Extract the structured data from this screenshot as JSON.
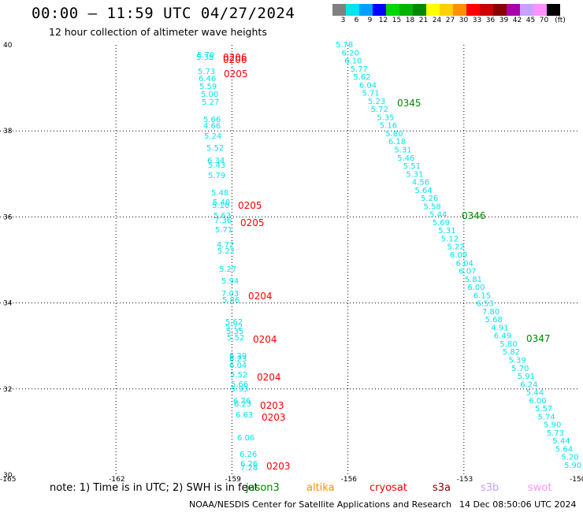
{
  "header": {
    "title": "00:00 – 11:59 UTC 04/27/2024",
    "subtitle": "12 hour collection of altimeter wave heights"
  },
  "legend": {
    "unit": "(ft)",
    "bins": [
      {
        "label": "3",
        "color": "#808080"
      },
      {
        "label": "6",
        "color": "#00e5ee"
      },
      {
        "label": "9",
        "color": "#00a0ff"
      },
      {
        "label": "12",
        "color": "#0000ff"
      },
      {
        "label": "15",
        "color": "#00d800"
      },
      {
        "label": "18",
        "color": "#00b400"
      },
      {
        "label": "21",
        "color": "#008800"
      },
      {
        "label": "24",
        "color": "#ffff00"
      },
      {
        "label": "27",
        "color": "#ffd000"
      },
      {
        "label": "30",
        "color": "#ff9000"
      },
      {
        "label": "33",
        "color": "#ff0000"
      },
      {
        "label": "36",
        "color": "#cc0000"
      },
      {
        "label": "39",
        "color": "#880000"
      },
      {
        "label": "42",
        "color": "#aa00aa"
      },
      {
        "label": "45",
        "color": "#c8a0ff"
      },
      {
        "label": "70",
        "color": "#ff90ff"
      },
      {
        "label": "",
        "color": "#000000"
      }
    ]
  },
  "map": {
    "lat_ticks": [
      "40",
      "38",
      "36",
      "34",
      "32",
      "30"
    ],
    "lon_ticks": [
      "-165",
      "-162",
      "-159",
      "-156",
      "-153",
      "-150"
    ],
    "lon_range": [
      -165,
      -150
    ],
    "lat_range": [
      30,
      40
    ],
    "track_color": "#00e5ee",
    "time_colors": {
      "jason3": "#008800",
      "cryosat": "#ff0000"
    },
    "west_track_values": [
      "5.70",
      "5.38",
      "5.73",
      "6.46",
      "5.59",
      "5.00",
      "5.27",
      "5.66",
      "4.66",
      "5.24",
      "5.52",
      "6.34",
      "5.43",
      "5.79",
      "5.48",
      "5.40",
      "5.10",
      "5.63",
      "7.36",
      "5.71",
      "4.72",
      "5.22",
      "5.27",
      "5.94",
      "7.03",
      "5.86",
      "5.62",
      "5.72",
      "5.35",
      "5.52",
      "6.39",
      "6.23",
      "6.04",
      "5.52",
      "5.66",
      "5.93",
      "6.26",
      "6.23",
      "6.63",
      "6.06",
      "6.26",
      "6.26",
      "7.28"
    ],
    "west_track_times": [
      "0206",
      "0206",
      "0205",
      "0205",
      "0205",
      "0204",
      "0204",
      "0204",
      "0203",
      "0203",
      "0203"
    ],
    "east_track_values": [
      "5.78",
      "6.20",
      "6.10",
      "5.77",
      "5.62",
      "6.04",
      "5.71",
      "5.23",
      "5.72",
      "5.35",
      "5.16",
      "5.80",
      "6.18",
      "5.31",
      "5.46",
      "5.51",
      "5.31",
      "4.56",
      "5.64",
      "5.26",
      "5.58",
      "5.44",
      "5.69",
      "5.31",
      "5.12",
      "5.22",
      "6.09",
      "6.04",
      "6.07",
      "5.81",
      "6.00",
      "6.15",
      "6.53",
      "7.80",
      "5.68",
      "4.91",
      "6.49",
      "5.80",
      "5.82",
      "5.39",
      "5.70",
      "5.91",
      "6.24",
      "5.44",
      "6.00",
      "5.57",
      "5.74",
      "5.90",
      "5.73",
      "5.44",
      "5.64",
      "5.20",
      "5.90"
    ],
    "east_track_times": [
      "0345",
      "0346",
      "0347"
    ]
  },
  "notes": {
    "note": "note:  1) Time is in UTC; 2) SWH is in feet",
    "sat_jason3": "jason3",
    "sat_altika": "altika",
    "sat_cryosat": "cryosat",
    "sat_s3a": "s3a",
    "sat_s3b": "s3b",
    "sat_swot": "swot",
    "sat_colors": {
      "jason3": "#008800",
      "altika": "#ff9000",
      "cryosat": "#ff0000",
      "s3a": "#880000",
      "s3b": "#c8a0ff",
      "swot": "#ff90ff"
    }
  },
  "footer": {
    "credit": "NOAA/NESDIS Center for Satellite Applications and Research",
    "timestamp": "14 Dec 08:50:06 UTC 2024"
  }
}
